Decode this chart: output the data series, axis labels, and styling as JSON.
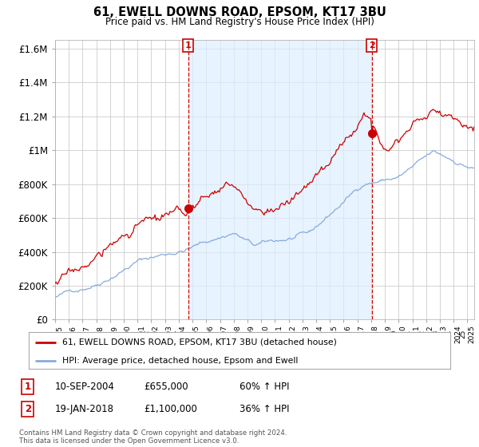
{
  "title": "61, EWELL DOWNS ROAD, EPSOM, KT17 3BU",
  "subtitle": "Price paid vs. HM Land Registry's House Price Index (HPI)",
  "ylabel_ticks": [
    "£0",
    "£200K",
    "£400K",
    "£600K",
    "£800K",
    "£1M",
    "£1.2M",
    "£1.4M",
    "£1.6M"
  ],
  "ytick_values": [
    0,
    200000,
    400000,
    600000,
    800000,
    1000000,
    1200000,
    1400000,
    1600000
  ],
  "ylim": [
    0,
    1650000
  ],
  "xlim_start": 1995.0,
  "xlim_end": 2025.5,
  "sale1_x": 2004.69,
  "sale1_y": 655000,
  "sale1_label": "1",
  "sale2_x": 2018.05,
  "sale2_y": 1100000,
  "sale2_label": "2",
  "sale1_date": "10-SEP-2004",
  "sale1_price": "£655,000",
  "sale1_hpi": "60% ↑ HPI",
  "sale2_date": "19-JAN-2018",
  "sale2_price": "£1,100,000",
  "sale2_hpi": "36% ↑ HPI",
  "legend_line1": "61, EWELL DOWNS ROAD, EPSOM, KT17 3BU (detached house)",
  "legend_line2": "HPI: Average price, detached house, Epsom and Ewell",
  "footnote": "Contains HM Land Registry data © Crown copyright and database right 2024.\nThis data is licensed under the Open Government Licence v3.0.",
  "red_color": "#cc0000",
  "blue_color": "#88aadd",
  "shade_color": "#ddeeff",
  "background_color": "#ffffff",
  "grid_color": "#cccccc"
}
